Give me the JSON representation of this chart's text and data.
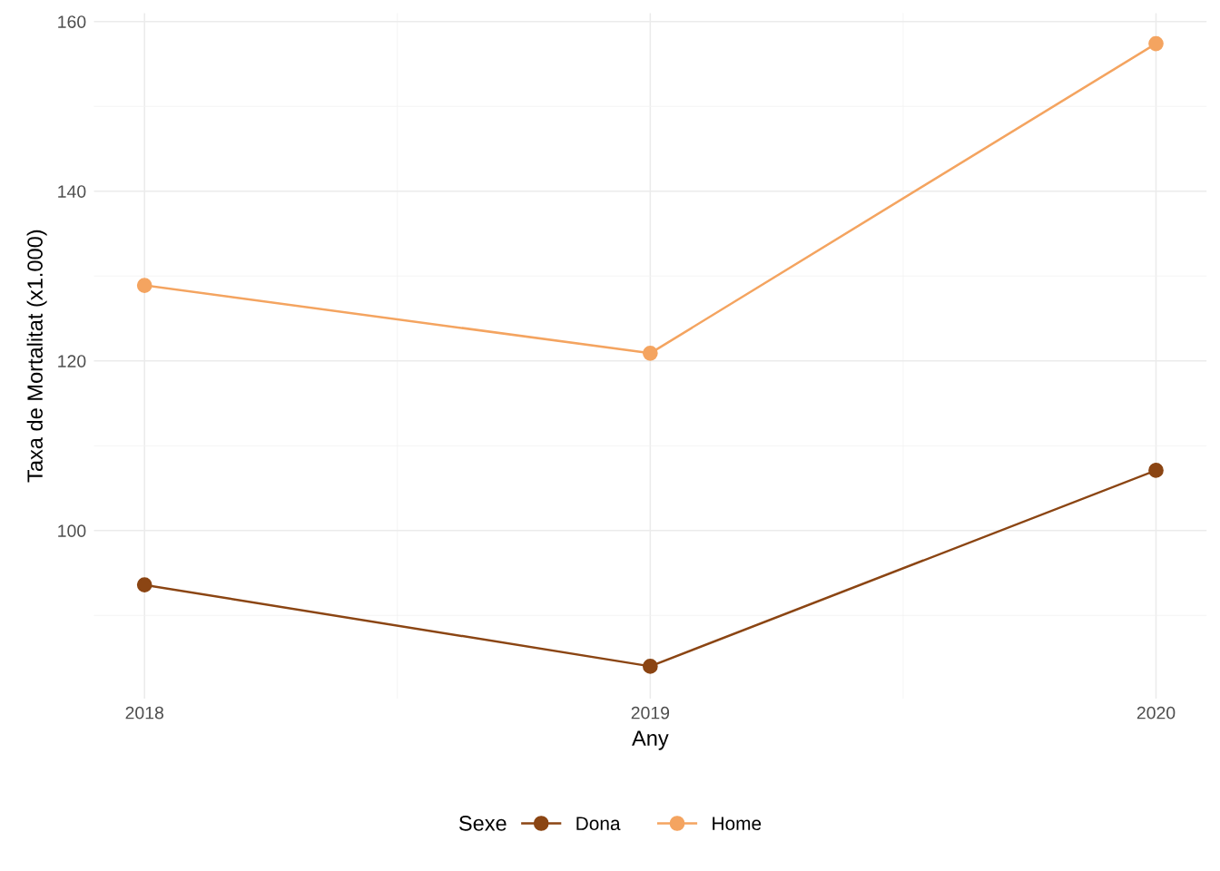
{
  "chart_data": {
    "type": "line",
    "xlabel": "Any",
    "ylabel": "Taxa de Mortalitat (x1.000)",
    "legend_title": "Sexe",
    "x": [
      2018,
      2019,
      2020
    ],
    "series": [
      {
        "name": "Dona",
        "color": "#8b4513",
        "values": [
          93.6,
          84.0,
          107.1
        ]
      },
      {
        "name": "Home",
        "color": "#f4a460",
        "values": [
          128.9,
          120.9,
          157.4
        ]
      }
    ],
    "xlim": [
      2017.9,
      2020.1
    ],
    "xticks": [
      2018,
      2019,
      2020
    ],
    "ylim": [
      80.2,
      161
    ],
    "yticks": [
      100,
      120,
      140,
      160
    ],
    "grid": true,
    "legend": "bottom",
    "marker": "circle",
    "line_style": "solid"
  }
}
